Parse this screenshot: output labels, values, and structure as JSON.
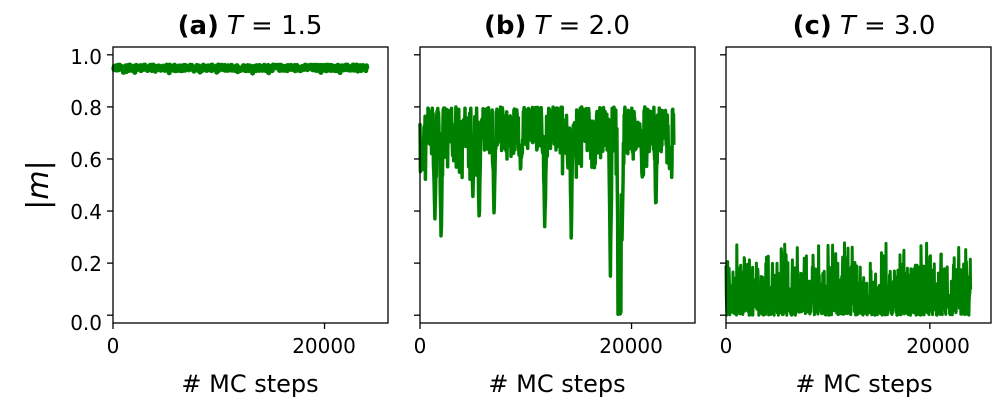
{
  "chart_data": [
    {
      "type": "line",
      "panel": "(a)",
      "temperature": "T = 1.5",
      "title": "(a) T = 1.5",
      "xlabel": "# MC steps",
      "ylabel": "|m|",
      "xlim": [
        0,
        26000
      ],
      "ylim": [
        -0.03,
        1.03
      ],
      "xticks": [
        0,
        20000
      ],
      "yticks": [
        0.0,
        0.2,
        0.4,
        0.6,
        0.8,
        1.0
      ],
      "ytick_labels_shown": true,
      "color": "#008000",
      "series": [
        {
          "x_range": [
            0,
            24000
          ],
          "mean": 0.95,
          "min": 0.93,
          "max": 0.965
        }
      ]
    },
    {
      "type": "line",
      "panel": "(b)",
      "temperature": "T = 2.0",
      "title": "(b) T = 2.0",
      "xlabel": "# MC steps",
      "ylabel": "",
      "xlim": [
        0,
        26000
      ],
      "ylim": [
        -0.03,
        1.03
      ],
      "xticks": [
        0,
        20000
      ],
      "yticks": [
        0.0,
        0.2,
        0.4,
        0.6,
        0.8,
        1.0
      ],
      "ytick_labels_shown": false,
      "color": "#008000",
      "series": [
        {
          "x_range": [
            0,
            24000
          ],
          "mean": 0.7,
          "min": 0.0,
          "max": 0.8,
          "dips": [
            {
              "x": 200,
              "y": 0.55
            },
            {
              "x": 1400,
              "y": 0.36
            },
            {
              "x": 2000,
              "y": 0.27
            },
            {
              "x": 3200,
              "y": 0.59
            },
            {
              "x": 5000,
              "y": 0.45
            },
            {
              "x": 5600,
              "y": 0.36
            },
            {
              "x": 7000,
              "y": 0.38
            },
            {
              "x": 9500,
              "y": 0.56
            },
            {
              "x": 11800,
              "y": 0.33
            },
            {
              "x": 14000,
              "y": 0.56
            },
            {
              "x": 14300,
              "y": 0.29
            },
            {
              "x": 16500,
              "y": 0.56
            },
            {
              "x": 18000,
              "y": 0.15
            },
            {
              "x": 18800,
              "y": 0.0
            },
            {
              "x": 19100,
              "y": 0.28
            },
            {
              "x": 21000,
              "y": 0.52
            },
            {
              "x": 22300,
              "y": 0.4
            },
            {
              "x": 23600,
              "y": 0.55
            }
          ]
        }
      ]
    },
    {
      "type": "line",
      "panel": "(c)",
      "temperature": "T = 3.0",
      "title": "(c) T = 3.0",
      "xlabel": "# MC steps",
      "ylabel": "",
      "xlim": [
        0,
        26000
      ],
      "ylim": [
        -0.03,
        1.03
      ],
      "xticks": [
        0,
        20000
      ],
      "yticks": [
        0.0,
        0.2,
        0.4,
        0.6,
        0.8,
        1.0
      ],
      "ytick_labels_shown": false,
      "color": "#008000",
      "series": [
        {
          "x_range": [
            0,
            24000
          ],
          "min": 0.0,
          "max": 0.28,
          "typical_max": 0.2
        }
      ]
    }
  ],
  "labels": {
    "title_a_bold": "(a)",
    "title_a_T": "T",
    "title_a_rest": " = 1.5",
    "title_b_bold": "(b)",
    "title_b_T": "T",
    "title_b_rest": " = 2.0",
    "title_c_bold": "(c)",
    "title_c_T": "T",
    "title_c_rest": " = 3.0",
    "ylabel_bar_left": "|",
    "ylabel_m": "m",
    "ylabel_bar_right": "|",
    "xlabel": "# MC steps",
    "ytick_0": "0.0",
    "ytick_1": "0.2",
    "ytick_2": "0.4",
    "ytick_3": "0.6",
    "ytick_4": "0.8",
    "ytick_5": "1.0",
    "xtick_0": "0",
    "xtick_1": "20000"
  }
}
